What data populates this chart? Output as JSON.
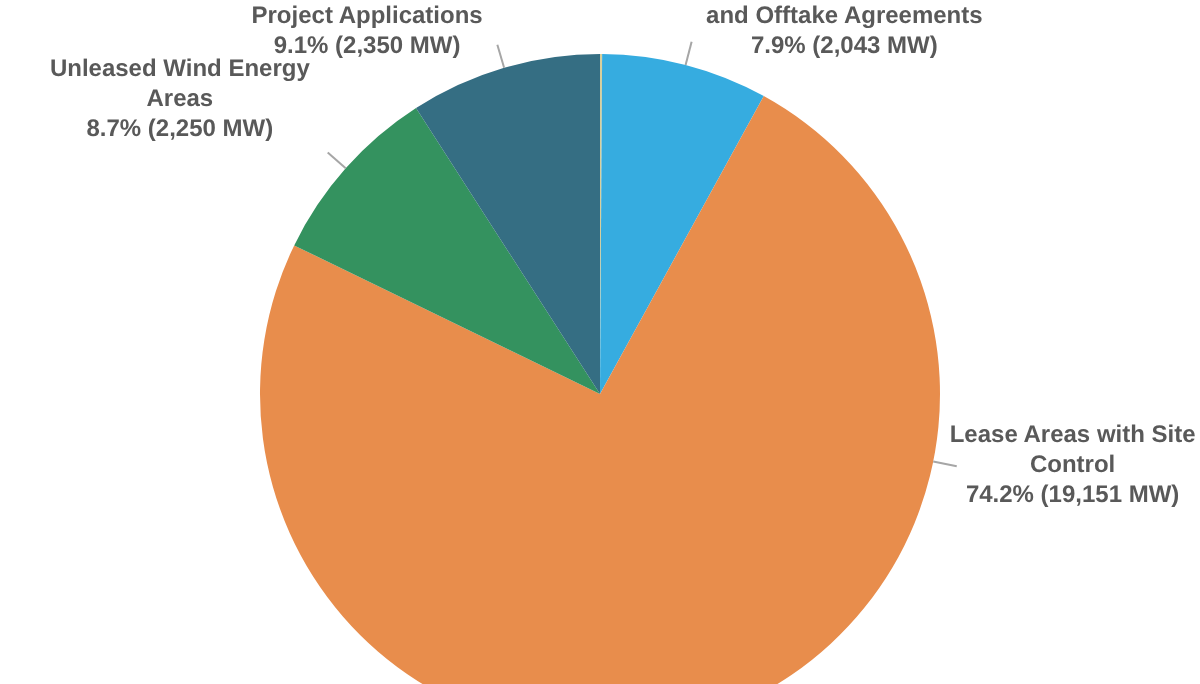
{
  "chart_data": {
    "type": "pie",
    "categories": [
      null,
      "and Offtake Agreements",
      "Lease Areas with Site Control",
      "Unleased Wind Energy Areas",
      "Project Applications"
    ],
    "values": [
      0.1,
      7.9,
      74.2,
      8.7,
      9.1
    ],
    "value_labels": [
      null,
      "7.9% (2,043 MW)",
      "74.2% (19,151 MW)",
      "8.7% (2,250 MW)",
      "9.1% (2,350 MW)"
    ],
    "colors": [
      "#d8cf9c",
      "#36ace0",
      "#e88d4c",
      "#34925f",
      "#356e83"
    ],
    "legend": false
  }
}
